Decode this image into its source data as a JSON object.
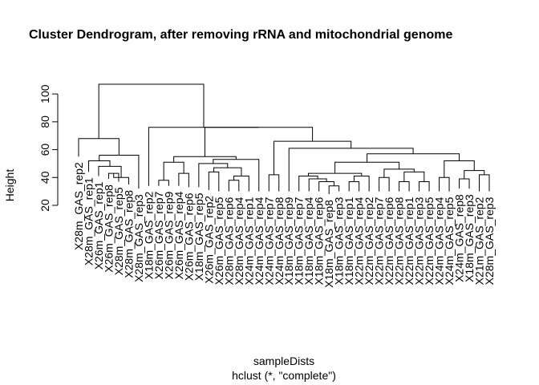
{
  "chart_data": {
    "type": "dendrogram",
    "title": "Cluster Dendrogram, after removing rRNA and mitochondrial genome",
    "xlabel": "sampleDists",
    "sublabel": "hclust (*, \"complete\")",
    "ylabel": "Height",
    "ylim": [
      20,
      110
    ],
    "yticks": [
      20,
      40,
      60,
      80,
      100
    ],
    "leaves": [
      {
        "label": "X28m_GAS_rep2",
        "h": 55
      },
      {
        "label": "X28m_GAS_rep1",
        "h": 44
      },
      {
        "label": "X26m_GAS_rep1",
        "h": 41
      },
      {
        "label": "X26m_GAS_rep8",
        "h": 39
      },
      {
        "label": "X28m_GAS_rep5",
        "h": 37
      },
      {
        "label": "X28m_GAS_rep8",
        "h": 35
      },
      {
        "label": "X28m_GAS_rep3",
        "h": 32
      },
      {
        "label": "X18m_GAS_rep2",
        "h": 34
      },
      {
        "label": "X26m_GAS_rep7",
        "h": 34
      },
      {
        "label": "X26m_GAS_rep9",
        "h": 34
      },
      {
        "label": "X26m_GAS_rep4",
        "h": 34
      },
      {
        "label": "X26m_GAS_rep6",
        "h": 33
      },
      {
        "label": "X18m_GAS_rep5",
        "h": 33
      },
      {
        "label": "X26m_GAS_rep2",
        "h": 31
      },
      {
        "label": "X26m_GAS_rep5",
        "h": 30
      },
      {
        "label": "X28m_GAS_rep6",
        "h": 30
      },
      {
        "label": "X28m_GAS_rep4",
        "h": 30
      },
      {
        "label": "X24m_GAS_rep1",
        "h": 30
      },
      {
        "label": "X24m_GAS_rep4",
        "h": 30
      },
      {
        "label": "X24m_GAS_rep7",
        "h": 30
      },
      {
        "label": "X24m_GAS_rep8",
        "h": 30
      },
      {
        "label": "X18m_GAS_rep9",
        "h": 30
      },
      {
        "label": "X18m_GAS_rep7",
        "h": 30
      },
      {
        "label": "X18m_GAS_rep4",
        "h": 30
      },
      {
        "label": "X18m_GAS_rep6",
        "h": 30
      },
      {
        "label": "X18m_GAS_rep8",
        "h": 28
      },
      {
        "label": "X18m_GAS_rep3",
        "h": 30
      },
      {
        "label": "X18m_GAS_rep1",
        "h": 30
      },
      {
        "label": "X22m_GAS_rep4",
        "h": 30
      },
      {
        "label": "X22m_GAS_rep2",
        "h": 30
      },
      {
        "label": "X22m_GAS_rep7",
        "h": 30
      },
      {
        "label": "X22m_GAS_rep6",
        "h": 30
      },
      {
        "label": "X22m_GAS_rep8",
        "h": 30
      },
      {
        "label": "X22m_GAS_rep1",
        "h": 30
      },
      {
        "label": "X22m_GAS_rep3",
        "h": 30
      },
      {
        "label": "X22m_GAS_rep5",
        "h": 30
      },
      {
        "label": "X24m_GAS_rep4",
        "h": 30
      },
      {
        "label": "X24m_GAS_rep5",
        "h": 30
      },
      {
        "label": "X24m_GAS_rep8",
        "h": 32
      },
      {
        "label": "X18m_GAS_rep3",
        "h": 32
      },
      {
        "label": "X21m_GAS_rep2",
        "h": 30
      },
      {
        "label": "X28m_GAS_rep3",
        "h": 30
      }
    ],
    "merges": [
      [
        -4,
        -5,
        43
      ],
      [
        1,
        -6,
        40
      ],
      [
        -3,
        2,
        48
      ],
      [
        -2,
        3,
        52
      ],
      [
        4,
        -7,
        56
      ],
      [
        -1,
        5,
        68
      ],
      [
        -9,
        -10,
        38
      ],
      [
        -11,
        -12,
        43
      ],
      [
        7,
        8,
        51
      ],
      [
        -16,
        -17,
        38
      ],
      [
        10,
        -18,
        41
      ],
      [
        -14,
        -15,
        44
      ],
      [
        12,
        11,
        47
      ],
      [
        -13,
        13,
        50
      ],
      [
        14,
        -19,
        53
      ],
      [
        9,
        15,
        55
      ],
      [
        -20,
        -21,
        42
      ],
      [
        -26,
        -27,
        34
      ],
      [
        -25,
        18,
        37
      ],
      [
        -24,
        19,
        39
      ],
      [
        -23,
        20,
        41
      ],
      [
        -28,
        -29,
        37
      ],
      [
        22,
        -30,
        41
      ],
      [
        21,
        23,
        43
      ],
      [
        -31,
        -32,
        40
      ],
      [
        -33,
        -34,
        37
      ],
      [
        -35,
        -36,
        37
      ],
      [
        26,
        27,
        44
      ],
      [
        25,
        28,
        46
      ],
      [
        24,
        29,
        51
      ],
      [
        -37,
        -38,
        40
      ],
      [
        -39,
        -40,
        39
      ],
      [
        -41,
        -42,
        42
      ],
      [
        32,
        33,
        45
      ],
      [
        31,
        34,
        52
      ],
      [
        30,
        35,
        57
      ],
      [
        -22,
        36,
        61
      ],
      [
        17,
        37,
        66
      ],
      [
        16,
        38,
        76
      ],
      [
        -8,
        39,
        76
      ],
      [
        6,
        40,
        107
      ]
    ]
  }
}
